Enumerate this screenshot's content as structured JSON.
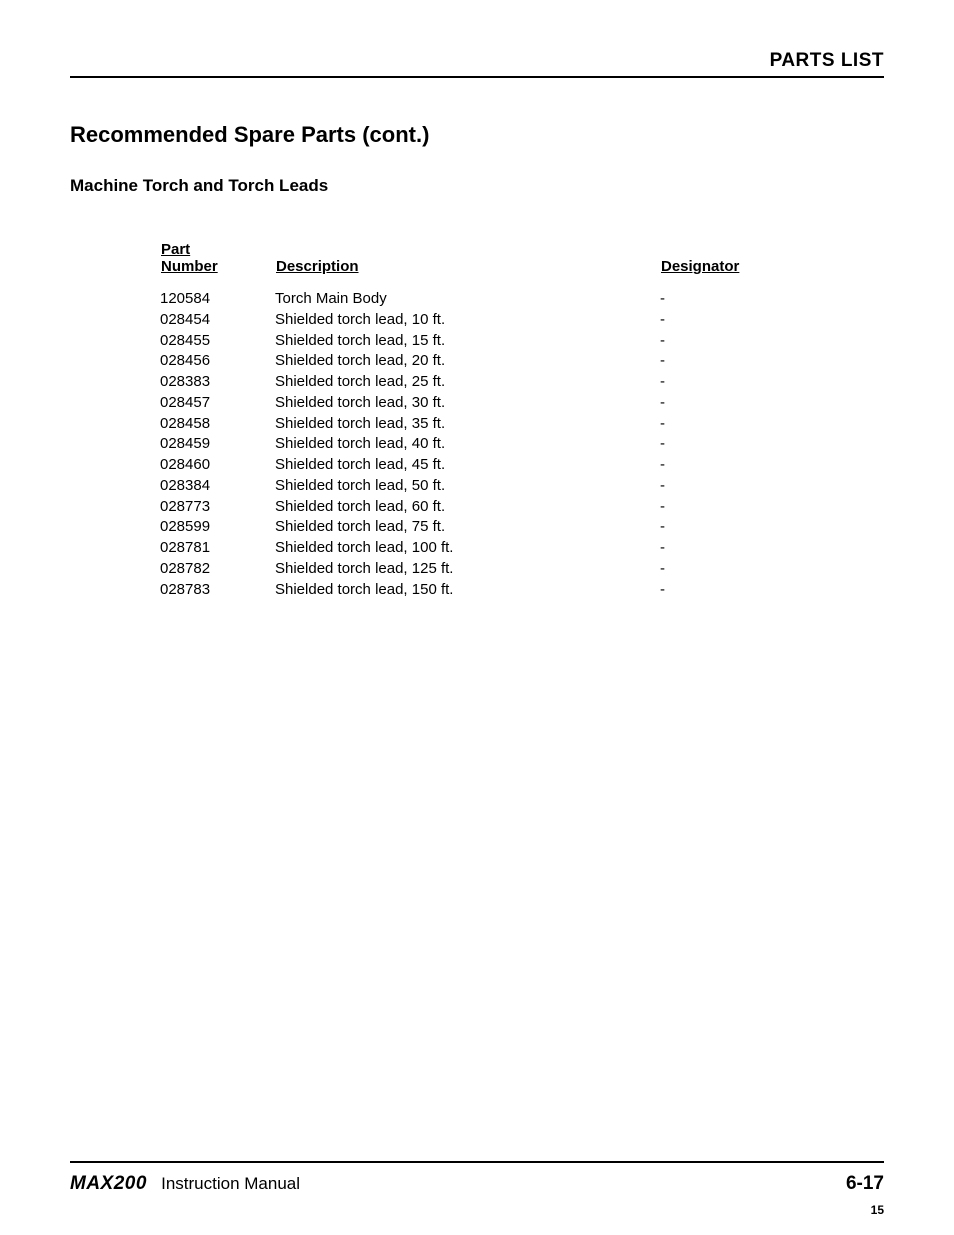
{
  "header": {
    "section_title": "PARTS LIST"
  },
  "content": {
    "heading": "Recommended Spare Parts (cont.)",
    "subheading": "Machine Torch and Torch Leads"
  },
  "table": {
    "columns": {
      "part_line1": "Part",
      "part_line2": "Number",
      "description": "Description",
      "designator": "Designator"
    },
    "rows": [
      {
        "part": "120584",
        "desc": "Torch Main Body",
        "desig": "-"
      },
      {
        "part": "028454",
        "desc": "Shielded torch lead, 10 ft.",
        "desig": "-"
      },
      {
        "part": "028455",
        "desc": "Shielded torch lead, 15 ft.",
        "desig": "-"
      },
      {
        "part": "028456",
        "desc": "Shielded torch lead, 20 ft.",
        "desig": "-"
      },
      {
        "part": "028383",
        "desc": "Shielded torch lead, 25 ft.",
        "desig": "-"
      },
      {
        "part": "028457",
        "desc": "Shielded torch lead, 30 ft.",
        "desig": "-"
      },
      {
        "part": "028458",
        "desc": "Shielded torch lead, 35 ft.",
        "desig": "-"
      },
      {
        "part": "028459",
        "desc": "Shielded torch lead, 40 ft.",
        "desig": "-"
      },
      {
        "part": "028460",
        "desc": "Shielded torch lead, 45 ft.",
        "desig": "-"
      },
      {
        "part": "028384",
        "desc": "Shielded torch lead, 50 ft.",
        "desig": "-"
      },
      {
        "part": "028773",
        "desc": "Shielded torch lead, 60 ft.",
        "desig": "-"
      },
      {
        "part": "028599",
        "desc": "Shielded torch lead, 75 ft.",
        "desig": "-"
      },
      {
        "part": "028781",
        "desc": "Shielded torch lead, 100 ft.",
        "desig": "-"
      },
      {
        "part": "028782",
        "desc": "Shielded torch lead, 125 ft.",
        "desig": "-"
      },
      {
        "part": "028783",
        "desc": "Shielded torch lead, 150 ft.",
        "desig": "-"
      }
    ]
  },
  "footer": {
    "product": "MAX200",
    "doc_type": "Instruction Manual",
    "page_ref": "6-17",
    "corner_page": "15"
  }
}
